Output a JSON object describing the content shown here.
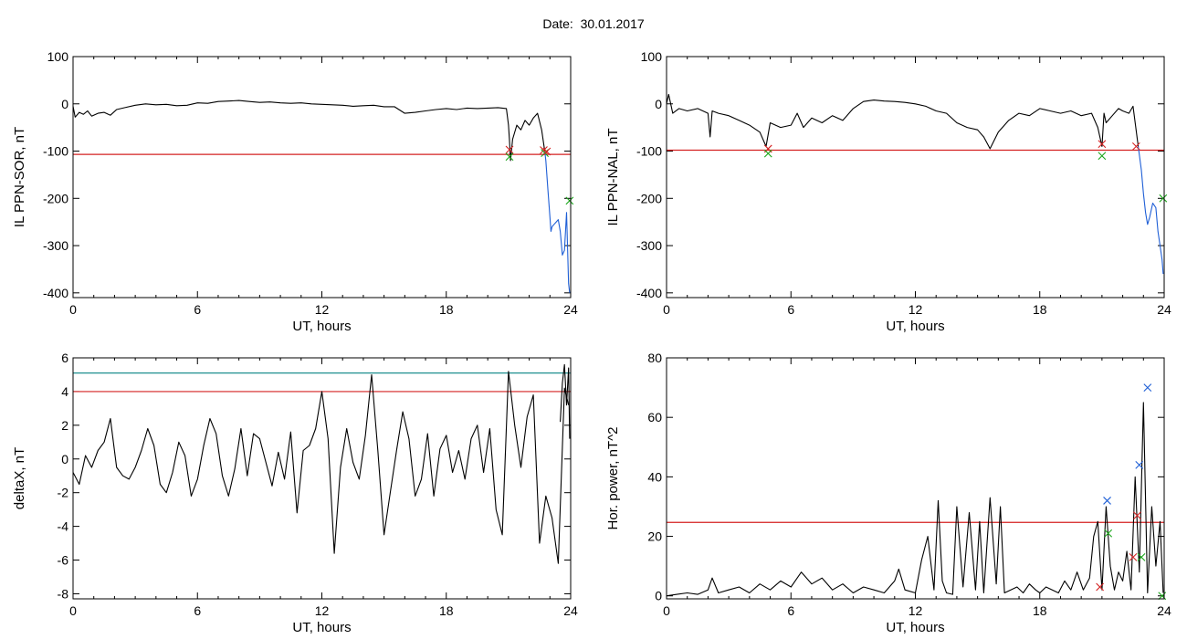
{
  "figure": {
    "title_label": "Date:",
    "title_value": "30.01.2017"
  },
  "chart_data": [
    {
      "id": "il-sor",
      "type": "line",
      "xlabel": "UT, hours",
      "ylabel": "IL PPN-SOR, nT",
      "xlim": [
        0,
        24
      ],
      "ylim": [
        -410,
        100
      ],
      "xticks": [
        0,
        6,
        12,
        18,
        24
      ],
      "yticks": [
        100,
        0,
        -100,
        -200,
        -300,
        -400
      ],
      "grid": false,
      "series": [
        {
          "color": "#000000",
          "x": [
            0,
            0.1,
            0.3,
            0.5,
            0.7,
            0.9,
            1.2,
            1.5,
            1.8,
            2.1,
            2.5,
            3,
            3.5,
            4,
            4.5,
            5,
            5.5,
            6,
            6.5,
            7,
            7.5,
            8,
            8.5,
            9,
            9.5,
            10,
            10.5,
            11,
            11.5,
            12,
            12.5,
            13,
            13.5,
            14,
            14.5,
            15,
            15.5,
            16,
            16.5,
            17,
            17.5,
            18,
            18.5,
            19,
            19.5,
            20,
            20.5,
            20.9,
            21.0,
            21.05,
            21.1,
            21.2,
            21.4,
            21.6,
            21.8,
            22.0,
            22.2,
            22.4,
            22.6,
            22.75
          ],
          "y": [
            -5,
            -28,
            -18,
            -22,
            -15,
            -26,
            -20,
            -18,
            -24,
            -12,
            -8,
            -3,
            0,
            -2,
            -1,
            -4,
            -3,
            2,
            1,
            5,
            6,
            7,
            5,
            3,
            4,
            2,
            1,
            2,
            0,
            -1,
            -2,
            -3,
            -5,
            -4,
            -3,
            -6,
            -6,
            -20,
            -18,
            -15,
            -12,
            -10,
            -12,
            -9,
            -10,
            -9,
            -8,
            -10,
            -45,
            -78,
            -120,
            -75,
            -45,
            -55,
            -35,
            -45,
            -30,
            -20,
            -55,
            -100
          ]
        },
        {
          "color": "#1f5fd6",
          "x": [
            22.75,
            22.8,
            22.9,
            23.0,
            23.05,
            23.1,
            23.2,
            23.3,
            23.4,
            23.5,
            23.6,
            23.7,
            23.8,
            23.9,
            23.95
          ],
          "y": [
            -100,
            -120,
            -180,
            -240,
            -270,
            -260,
            -255,
            -250,
            -245,
            -270,
            -320,
            -310,
            -230,
            -380,
            -400
          ]
        }
      ],
      "thresholds": [
        {
          "y": -107,
          "color": "#d42020"
        }
      ],
      "markers": [
        {
          "x": 21.05,
          "y": -97,
          "color": "#d42020"
        },
        {
          "x": 21.05,
          "y": -112,
          "color": "#1aa61a"
        },
        {
          "x": 22.7,
          "y": -98,
          "color": "#d42020"
        },
        {
          "x": 22.75,
          "y": -104,
          "color": "#1aa61a"
        },
        {
          "x": 22.85,
          "y": -101,
          "color": "#d42020"
        },
        {
          "x": 23.95,
          "y": -205,
          "color": "#1aa61a"
        }
      ]
    },
    {
      "id": "il-nal",
      "type": "line",
      "xlabel": "UT, hours",
      "ylabel": "IL PPN-NAL, nT",
      "xlim": [
        0,
        24
      ],
      "ylim": [
        -410,
        100
      ],
      "xticks": [
        0,
        6,
        12,
        18,
        24
      ],
      "yticks": [
        100,
        0,
        -100,
        -200,
        -300,
        -400
      ],
      "grid": false,
      "series": [
        {
          "color": "#000000",
          "x": [
            0,
            0.1,
            0.3,
            0.6,
            1,
            1.5,
            2,
            2.1,
            2.2,
            2.5,
            3,
            3.5,
            4,
            4.5,
            4.8,
            5,
            5.5,
            6,
            6.3,
            6.6,
            7,
            7.5,
            8,
            8.5,
            9,
            9.5,
            10,
            10.5,
            11,
            11.5,
            12,
            12.5,
            13,
            13.5,
            14,
            14.5,
            15,
            15.3,
            15.6,
            16,
            16.5,
            17,
            17.5,
            18,
            18.5,
            19,
            19.5,
            20,
            20.5,
            20.8,
            21.0,
            21.1,
            21.2,
            21.5,
            21.8,
            22.0,
            22.3,
            22.5,
            22.75
          ],
          "y": [
            0,
            20,
            -20,
            -10,
            -15,
            -10,
            -20,
            -70,
            -15,
            -20,
            -25,
            -35,
            -45,
            -60,
            -90,
            -40,
            -50,
            -45,
            -20,
            -50,
            -30,
            -40,
            -25,
            -35,
            -10,
            5,
            8,
            6,
            5,
            3,
            0,
            -5,
            -15,
            -20,
            -40,
            -50,
            -55,
            -70,
            -95,
            -60,
            -35,
            -20,
            -25,
            -10,
            -15,
            -20,
            -15,
            -25,
            -20,
            -50,
            -90,
            -20,
            -40,
            -25,
            -10,
            -15,
            -20,
            -5,
            -90
          ]
        },
        {
          "color": "#1f5fd6",
          "x": [
            22.75,
            22.9,
            23.0,
            23.1,
            23.2,
            23.3,
            23.45,
            23.6,
            23.7,
            23.8,
            23.9,
            23.95
          ],
          "y": [
            -90,
            -140,
            -190,
            -230,
            -255,
            -240,
            -210,
            -220,
            -270,
            -300,
            -330,
            -360
          ]
        }
      ],
      "thresholds": [
        {
          "y": -98,
          "color": "#d42020"
        }
      ],
      "markers": [
        {
          "x": 4.9,
          "y": -95,
          "color": "#d42020"
        },
        {
          "x": 4.9,
          "y": -105,
          "color": "#1aa61a"
        },
        {
          "x": 21.0,
          "y": -85,
          "color": "#d42020"
        },
        {
          "x": 21.0,
          "y": -110,
          "color": "#1aa61a"
        },
        {
          "x": 22.65,
          "y": -90,
          "color": "#d42020"
        },
        {
          "x": 23.95,
          "y": -200,
          "color": "#1aa61a"
        }
      ]
    },
    {
      "id": "deltax",
      "type": "line",
      "xlabel": "UT, hours",
      "ylabel": "deltaX, nT",
      "xlim": [
        0,
        24
      ],
      "ylim": [
        -8.3,
        6
      ],
      "xticks": [
        0,
        6,
        12,
        18,
        24
      ],
      "yticks": [
        6,
        4,
        2,
        0,
        -2,
        -4,
        -6,
        -8
      ],
      "grid": false,
      "series": [
        {
          "color": "#000000",
          "x": [
            0,
            0.3,
            0.6,
            0.9,
            1.2,
            1.5,
            1.8,
            2.1,
            2.4,
            2.7,
            3,
            3.3,
            3.6,
            3.9,
            4.2,
            4.5,
            4.8,
            5.1,
            5.4,
            5.7,
            6,
            6.3,
            6.6,
            6.9,
            7.2,
            7.5,
            7.8,
            8.1,
            8.4,
            8.7,
            9,
            9.3,
            9.6,
            9.9,
            10.2,
            10.5,
            10.8,
            11.1,
            11.4,
            11.7,
            12,
            12.3,
            12.6,
            12.9,
            13.2,
            13.5,
            13.8,
            14.1,
            14.4,
            14.7,
            15,
            15.3,
            15.6,
            15.9,
            16.2,
            16.5,
            16.8,
            17.1,
            17.4,
            17.7,
            18,
            18.3,
            18.6,
            18.9,
            19.2,
            19.5,
            19.8,
            20.1,
            20.4,
            20.7,
            21,
            21.3,
            21.6,
            21.9,
            22.2,
            22.5,
            22.8,
            23.1,
            23.4,
            23.7,
            23.9
          ],
          "y": [
            -0.8,
            -1.5,
            0.2,
            -0.5,
            0.5,
            1,
            2.4,
            -0.5,
            -1,
            -1.2,
            -0.5,
            0.5,
            1.8,
            0.8,
            -1.5,
            -2,
            -0.8,
            1,
            0.2,
            -2.2,
            -1.2,
            0.8,
            2.4,
            1.5,
            -1,
            -2.2,
            -0.6,
            1.8,
            -1,
            1.5,
            1.2,
            -0.2,
            -1.6,
            0.4,
            -1.2,
            1.6,
            -3.2,
            0.5,
            0.8,
            1.8,
            4,
            1.2,
            -5.6,
            -0.5,
            1.8,
            -0.2,
            -1.2,
            1.4,
            5,
            0.5,
            -4.5,
            -2,
            0.5,
            2.8,
            1.2,
            -2.2,
            -1.2,
            1.5,
            -2.2,
            0.6,
            1.4,
            -0.8,
            0.5,
            -1.2,
            1.2,
            2,
            -0.8,
            1.8,
            -3,
            -4.5,
            5.2,
            2,
            -0.5,
            2.5,
            3.8,
            -5,
            -2.2,
            -3.5,
            -6.2,
            4.2,
            3.2
          ]
        },
        {
          "color": "#000000",
          "x": [
            23.5,
            23.6,
            23.7,
            23.8,
            23.9,
            23.95
          ],
          "y": [
            2.2,
            4.5,
            5.6,
            3.2,
            5.4,
            1.2
          ]
        }
      ],
      "thresholds": [
        {
          "y": 5.1,
          "color": "#1f8f8f"
        },
        {
          "y": 4.0,
          "color": "#d42020"
        }
      ],
      "markers": []
    },
    {
      "id": "hor-power",
      "type": "line",
      "xlabel": "UT, hours",
      "ylabel": "Hor. power, nT^2",
      "xlim": [
        0,
        24
      ],
      "ylim": [
        -1,
        80
      ],
      "xticks": [
        0,
        6,
        12,
        18,
        24
      ],
      "yticks": [
        80,
        60,
        40,
        20,
        0
      ],
      "grid": false,
      "series": [
        {
          "color": "#000000",
          "x": [
            0,
            0.5,
            1,
            1.5,
            2,
            2.2,
            2.5,
            3,
            3.5,
            4,
            4.5,
            5,
            5.5,
            6,
            6.5,
            7,
            7.5,
            8,
            8.5,
            9,
            9.5,
            10,
            10.5,
            11,
            11.2,
            11.5,
            12,
            12.3,
            12.6,
            12.9,
            13.1,
            13.3,
            13.5,
            13.8,
            14,
            14.3,
            14.6,
            14.9,
            15.1,
            15.3,
            15.6,
            15.9,
            16.1,
            16.3,
            16.6,
            16.9,
            17.2,
            17.5,
            17.8,
            18,
            18.3,
            18.6,
            18.9,
            19.2,
            19.5,
            19.8,
            20.1,
            20.4,
            20.6,
            20.8,
            21,
            21.2,
            21.4,
            21.6,
            21.8,
            22,
            22.2,
            22.4,
            22.6,
            22.8,
            23,
            23.2,
            23.4,
            23.6,
            23.8,
            23.95
          ],
          "y": [
            0,
            0.5,
            1,
            0.5,
            2,
            6,
            1,
            2,
            3,
            1,
            4,
            2,
            5,
            3,
            8,
            4,
            6,
            2,
            4,
            1,
            3,
            2,
            1,
            5,
            9,
            2,
            1,
            12,
            20,
            2,
            32,
            5,
            1,
            0.5,
            30,
            3,
            28,
            2,
            25,
            1,
            33,
            4,
            30,
            1,
            2,
            3,
            1,
            4,
            2,
            1,
            3,
            2,
            1,
            5,
            2,
            8,
            2,
            6,
            20,
            25,
            2,
            30,
            10,
            2,
            8,
            5,
            15,
            2,
            40,
            8,
            65,
            1,
            30,
            10,
            25,
            1
          ]
        }
      ],
      "thresholds": [
        {
          "y": 24.7,
          "color": "#d42020"
        }
      ],
      "markers": [
        {
          "x": 21.25,
          "y": 32,
          "color": "#1f5fd6"
        },
        {
          "x": 21.3,
          "y": 21,
          "color": "#1aa61a"
        },
        {
          "x": 20.9,
          "y": 3,
          "color": "#d42020"
        },
        {
          "x": 22.5,
          "y": 13,
          "color": "#d42020"
        },
        {
          "x": 22.7,
          "y": 27,
          "color": "#d42020"
        },
        {
          "x": 22.8,
          "y": 44,
          "color": "#1f5fd6"
        },
        {
          "x": 23.2,
          "y": 70,
          "color": "#1f5fd6"
        },
        {
          "x": 22.9,
          "y": 13,
          "color": "#1aa61a"
        },
        {
          "x": 23.9,
          "y": 0,
          "color": "#1aa61a"
        }
      ]
    }
  ]
}
